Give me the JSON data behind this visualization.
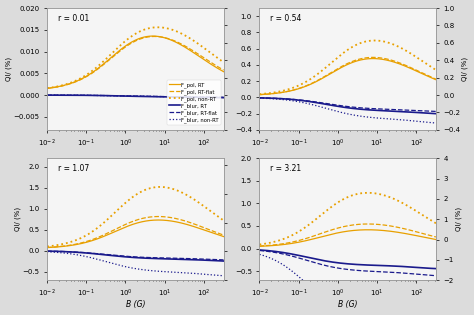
{
  "panels": [
    {
      "r": 0.01,
      "ylim_left": [
        -0.008,
        0.02
      ],
      "ylim_right": [
        -0.4,
        1.0
      ],
      "orange": {
        "solid": {
          "amp": 0.017,
          "cr": -0.3,
          "cf": 1.8,
          "base": 0.001
        },
        "dashed": {
          "amp": 0.0165,
          "cr": -0.3,
          "cf": 1.9,
          "base": 0.001
        },
        "dotted": {
          "amp": 0.0185,
          "cr": -0.3,
          "cf": 2.1,
          "base": 0.001
        }
      },
      "blue": {
        "solid": {
          "plateau": -0.00045,
          "onset": 0.0,
          "drop2": 2.2,
          "drop2amp": -0.0002
        },
        "dashed": {
          "plateau": -0.0004,
          "onset": 0.0,
          "drop2": 2.2,
          "drop2amp": -0.00015
        },
        "dotted": {
          "plateau": -0.00043,
          "onset": 0.0,
          "drop2": 2.2,
          "drop2amp": -0.00018
        }
      }
    },
    {
      "r": 0.54,
      "ylim_left": [
        -0.4,
        1.1
      ],
      "ylim_right": [
        -0.4,
        1.0
      ],
      "orange": {
        "solid": {
          "amp": 0.62,
          "cr": -0.1,
          "cf": 2.0,
          "base": 0.02
        },
        "dashed": {
          "amp": 0.64,
          "cr": -0.1,
          "cf": 2.0,
          "base": 0.02
        },
        "dotted": {
          "amp": 0.9,
          "cr": -0.1,
          "cf": 2.1,
          "base": 0.02
        }
      },
      "blue": {
        "solid": {
          "plateau": -0.17,
          "onset": -0.3,
          "drop2": 2.1,
          "drop2amp": -0.04
        },
        "dashed": {
          "plateau": -0.15,
          "onset": -0.3,
          "drop2": 2.1,
          "drop2amp": -0.03
        },
        "dotted": {
          "plateau": -0.27,
          "onset": -0.3,
          "drop2": 2.1,
          "drop2amp": -0.06
        }
      }
    },
    {
      "r": 1.07,
      "ylim_left": [
        -0.7,
        2.2
      ],
      "ylim_right": [
        -4.0,
        4.5
      ],
      "orange": {
        "solid": {
          "amp": 0.9,
          "cr": -0.2,
          "cf": 2.0,
          "base": 0.05
        },
        "dashed": {
          "amp": 1.01,
          "cr": -0.2,
          "cf": 2.0,
          "base": 0.05
        },
        "dotted": {
          "amp": 1.9,
          "cr": -0.2,
          "cf": 2.1,
          "base": 0.05
        }
      },
      "blue": {
        "solid": {
          "plateau": -0.2,
          "onset": -0.5,
          "drop2": 2.1,
          "drop2amp": -0.06
        },
        "dashed": {
          "plateau": -0.18,
          "onset": -0.5,
          "drop2": 2.1,
          "drop2amp": -0.05
        },
        "dotted": {
          "plateau": -0.52,
          "onset": -0.5,
          "drop2": 2.1,
          "drop2amp": -0.1
        }
      }
    },
    {
      "r": 3.21,
      "ylim_left": [
        -0.7,
        2.0
      ],
      "ylim_right": [
        -2.0,
        4.0
      ],
      "orange": {
        "solid": {
          "amp": 0.48,
          "cr": -0.4,
          "cf": 2.1,
          "base": 0.03
        },
        "dashed": {
          "amp": 0.64,
          "cr": -0.4,
          "cf": 2.1,
          "base": 0.03
        },
        "dotted": {
          "amp": 1.5,
          "cr": -0.4,
          "cf": 2.1,
          "base": 0.03
        }
      },
      "blue": {
        "solid": {
          "plateau": -0.38,
          "onset": -0.8,
          "drop2": 2.0,
          "drop2amp": -0.08
        },
        "dashed": {
          "plateau": -0.52,
          "onset": -0.8,
          "drop2": 2.0,
          "drop2amp": -0.1
        },
        "dotted": {
          "plateau": -1.55,
          "onset": -0.8,
          "drop2": 2.0,
          "drop2amp": -0.2
        }
      }
    }
  ],
  "orange_color": "#E8A000",
  "blue_color": "#1A1A8C",
  "legend_labels": [
    "F_pol, RT",
    "F_pol, RT-flat",
    "F_pol, non-RT",
    "F_blur, RT",
    "F_blur, RT-flat",
    "F_blur, non-RT"
  ],
  "xlabel": "B (G)",
  "ylabel_left": "QI/ (%)",
  "ylabel_right": "QI/ (%)",
  "bg_color": "#DCDCDC",
  "panel_bg": "#F5F5F5"
}
